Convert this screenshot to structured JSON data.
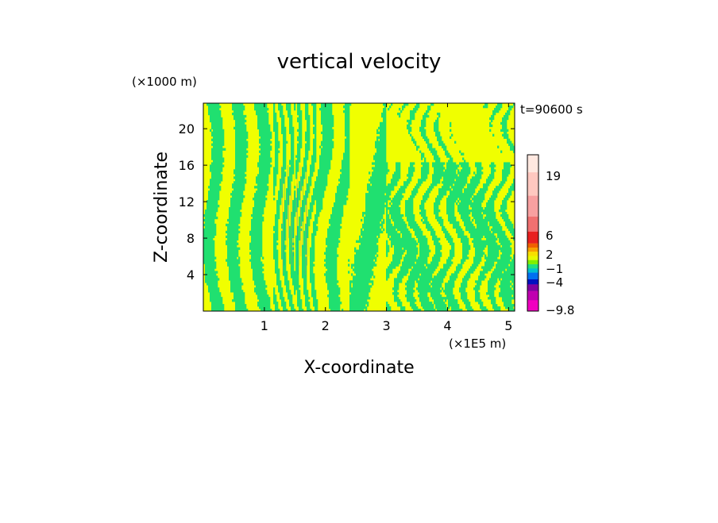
{
  "chart_data": {
    "type": "heatmap",
    "title": "vertical velocity",
    "xlabel": "X-coordinate",
    "ylabel": "Z-coordinate",
    "x_unit_label": "(×1E5 m)",
    "y_unit_label": "(×1000 m)",
    "time_label": "t=90600 s",
    "xlim": [
      0,
      5.1
    ],
    "ylim": [
      0,
      22.8
    ],
    "x_ticks": [
      1,
      2,
      3,
      4,
      5
    ],
    "x_tick_labels": [
      "1",
      "2",
      "3",
      "4",
      "5"
    ],
    "y_ticks": [
      4,
      8,
      12,
      16,
      20
    ],
    "y_tick_labels": [
      "4",
      "8",
      "12",
      "16",
      "20"
    ],
    "colorbar": {
      "labels": [
        "19",
        "6",
        "2",
        "−1",
        "−4",
        "−9.8"
      ],
      "label_values": [
        19,
        6,
        2,
        -1,
        -4,
        -9.8
      ],
      "bins": [
        {
          "color": "#ffe8e0",
          "value": 21
        },
        {
          "color": "#ffc8c0",
          "value": 17
        },
        {
          "color": "#f8a0a0",
          "value": 12
        },
        {
          "color": "#f07070",
          "value": 8
        },
        {
          "color": "#e82020",
          "value": 6
        },
        {
          "color": "#f06000",
          "value": 4
        },
        {
          "color": "#f8a000",
          "value": 3
        },
        {
          "color": "#f8e000",
          "value": 2
        },
        {
          "color": "#e8f800",
          "value": 1
        },
        {
          "color": "#80f000",
          "value": 0
        },
        {
          "color": "#20e080",
          "value": -1
        },
        {
          "color": "#00c0d0",
          "value": -2
        },
        {
          "color": "#0070f0",
          "value": -3
        },
        {
          "color": "#0010c0",
          "value": -4
        },
        {
          "color": "#8000a0",
          "value": -6
        },
        {
          "color": "#c000b0",
          "value": -8
        },
        {
          "color": "#f000c0",
          "value": -9.8
        }
      ]
    },
    "field_colors": {
      "positive": "#f0ff00",
      "negative": "#20e070"
    },
    "description_of_field": "alternating thin positive/negative vertical velocity bands, tilted plumes near x=1.5, noisy small-scale structure for x>3"
  }
}
